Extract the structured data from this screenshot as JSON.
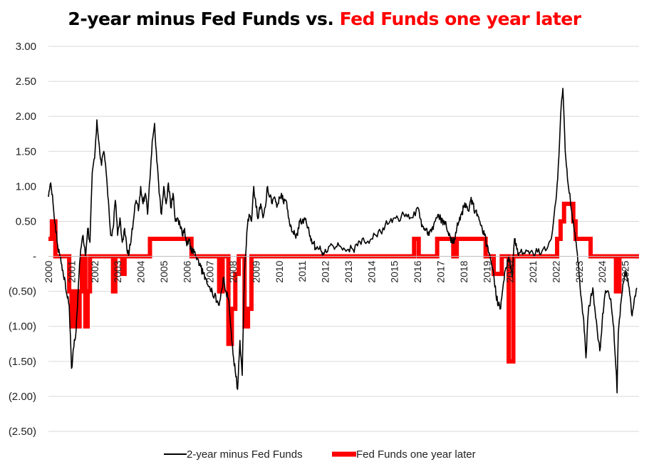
{
  "chart_data": {
    "type": "line",
    "title_part1": "2-year minus Fed Funds vs.",
    "title_part2": "Fed Funds one year later",
    "xlabel": "",
    "ylabel": "",
    "ylim": [
      -2.5,
      3.0
    ],
    "y_ticks": [
      {
        "value": 3.0,
        "label": "3.00"
      },
      {
        "value": 2.5,
        "label": "2.50"
      },
      {
        "value": 2.0,
        "label": "2.00"
      },
      {
        "value": 1.5,
        "label": "1.50"
      },
      {
        "value": 1.0,
        "label": "1.00"
      },
      {
        "value": 0.5,
        "label": "0.50"
      },
      {
        "value": 0.0,
        "label": "-"
      },
      {
        "value": -0.5,
        "label": "(0.50)"
      },
      {
        "value": -1.0,
        "label": "(1.00)"
      },
      {
        "value": -1.5,
        "label": "(1.50)"
      },
      {
        "value": -2.0,
        "label": "(2.00)"
      },
      {
        "value": -2.5,
        "label": "(2.50)"
      }
    ],
    "x_ticks": [
      "2000",
      "2001",
      "2002",
      "2003",
      "2004",
      "2005",
      "2006",
      "2007",
      "2008",
      "2009",
      "2010",
      "2011",
      "2012",
      "2013",
      "2014",
      "2015",
      "2016",
      "2017",
      "2018",
      "2019",
      "2020",
      "2021",
      "2022",
      "2023",
      "2024",
      "2025"
    ],
    "xlim": [
      2000.0,
      2025.6
    ],
    "grid": true,
    "legend_position": "bottom",
    "colors": {
      "spread": "#000000",
      "fedfunds": "#ff0000",
      "grid": "#d9d9d9"
    },
    "series": [
      {
        "name": "2-year minus Fed Funds",
        "points": [
          [
            2000.0,
            0.85
          ],
          [
            2000.1,
            1.05
          ],
          [
            2000.2,
            0.75
          ],
          [
            2000.3,
            0.45
          ],
          [
            2000.4,
            0.15
          ],
          [
            2000.5,
            0.0
          ],
          [
            2000.6,
            -0.2
          ],
          [
            2000.7,
            -0.3
          ],
          [
            2000.8,
            -0.55
          ],
          [
            2000.9,
            -0.7
          ],
          [
            2001.0,
            -1.6
          ],
          [
            2001.1,
            -1.3
          ],
          [
            2001.2,
            -1.05
          ],
          [
            2001.3,
            -0.4
          ],
          [
            2001.4,
            0.1
          ],
          [
            2001.5,
            0.3
          ],
          [
            2001.6,
            0.0
          ],
          [
            2001.7,
            0.4
          ],
          [
            2001.8,
            0.2
          ],
          [
            2001.9,
            1.2
          ],
          [
            2002.0,
            1.4
          ],
          [
            2002.1,
            1.95
          ],
          [
            2002.2,
            1.6
          ],
          [
            2002.3,
            1.3
          ],
          [
            2002.4,
            1.5
          ],
          [
            2002.5,
            1.2
          ],
          [
            2002.6,
            0.8
          ],
          [
            2002.7,
            0.3
          ],
          [
            2002.8,
            0.4
          ],
          [
            2002.9,
            0.8
          ],
          [
            2003.0,
            0.3
          ],
          [
            2003.1,
            0.55
          ],
          [
            2003.2,
            0.2
          ],
          [
            2003.3,
            0.4
          ],
          [
            2003.4,
            0.1
          ],
          [
            2003.5,
            0.05
          ],
          [
            2003.6,
            0.3
          ],
          [
            2003.7,
            0.55
          ],
          [
            2003.8,
            0.8
          ],
          [
            2003.9,
            0.65
          ],
          [
            2004.0,
            1.0
          ],
          [
            2004.1,
            0.75
          ],
          [
            2004.2,
            0.9
          ],
          [
            2004.3,
            0.6
          ],
          [
            2004.4,
            1.1
          ],
          [
            2004.5,
            1.65
          ],
          [
            2004.6,
            1.9
          ],
          [
            2004.7,
            1.35
          ],
          [
            2004.8,
            0.9
          ],
          [
            2004.9,
            0.6
          ],
          [
            2005.0,
            1.0
          ],
          [
            2005.1,
            0.75
          ],
          [
            2005.2,
            1.05
          ],
          [
            2005.3,
            0.7
          ],
          [
            2005.4,
            0.9
          ],
          [
            2005.5,
            0.5
          ],
          [
            2005.6,
            0.55
          ],
          [
            2005.7,
            0.45
          ],
          [
            2005.8,
            0.3
          ],
          [
            2005.9,
            0.4
          ],
          [
            2006.0,
            0.15
          ],
          [
            2006.1,
            0.25
          ],
          [
            2006.2,
            0.05
          ],
          [
            2006.3,
            0.1
          ],
          [
            2006.4,
            0.0
          ],
          [
            2006.5,
            -0.05
          ],
          [
            2006.6,
            -0.15
          ],
          [
            2006.7,
            -0.25
          ],
          [
            2006.8,
            -0.3
          ],
          [
            2006.9,
            -0.4
          ],
          [
            2007.0,
            -0.45
          ],
          [
            2007.1,
            -0.5
          ],
          [
            2007.2,
            -0.55
          ],
          [
            2007.3,
            -0.65
          ],
          [
            2007.4,
            -0.7
          ],
          [
            2007.5,
            -0.5
          ],
          [
            2007.6,
            -0.3
          ],
          [
            2007.7,
            -0.5
          ],
          [
            2007.8,
            -0.6
          ],
          [
            2007.9,
            -1.0
          ],
          [
            2008.0,
            -1.4
          ],
          [
            2008.1,
            -1.65
          ],
          [
            2008.2,
            -1.9
          ],
          [
            2008.3,
            -1.2
          ],
          [
            2008.4,
            -1.7
          ],
          [
            2008.5,
            -0.2
          ],
          [
            2008.6,
            0.35
          ],
          [
            2008.7,
            0.6
          ],
          [
            2008.8,
            0.5
          ],
          [
            2008.9,
            1.0
          ],
          [
            2009.0,
            0.7
          ],
          [
            2009.1,
            0.55
          ],
          [
            2009.2,
            0.75
          ],
          [
            2009.3,
            0.55
          ],
          [
            2009.4,
            0.7
          ],
          [
            2009.5,
            1.0
          ],
          [
            2009.6,
            0.85
          ],
          [
            2009.7,
            0.75
          ],
          [
            2009.8,
            0.85
          ],
          [
            2009.9,
            0.7
          ],
          [
            2010.0,
            0.85
          ],
          [
            2010.1,
            0.9
          ],
          [
            2010.2,
            0.75
          ],
          [
            2010.3,
            0.8
          ],
          [
            2010.4,
            0.55
          ],
          [
            2010.5,
            0.45
          ],
          [
            2010.6,
            0.35
          ],
          [
            2010.7,
            0.3
          ],
          [
            2010.8,
            0.3
          ],
          [
            2010.9,
            0.5
          ],
          [
            2011.0,
            0.5
          ],
          [
            2011.1,
            0.55
          ],
          [
            2011.2,
            0.45
          ],
          [
            2011.3,
            0.35
          ],
          [
            2011.4,
            0.25
          ],
          [
            2011.5,
            0.2
          ],
          [
            2011.6,
            0.1
          ],
          [
            2011.7,
            0.1
          ],
          [
            2011.8,
            0.1
          ],
          [
            2011.9,
            0.05
          ],
          [
            2012.0,
            0.1
          ],
          [
            2012.2,
            0.15
          ],
          [
            2012.4,
            0.1
          ],
          [
            2012.6,
            0.15
          ],
          [
            2012.8,
            0.12
          ],
          [
            2013.0,
            0.1
          ],
          [
            2013.2,
            0.1
          ],
          [
            2013.4,
            0.15
          ],
          [
            2013.6,
            0.25
          ],
          [
            2013.8,
            0.2
          ],
          [
            2014.0,
            0.25
          ],
          [
            2014.2,
            0.3
          ],
          [
            2014.4,
            0.35
          ],
          [
            2014.6,
            0.45
          ],
          [
            2014.8,
            0.5
          ],
          [
            2015.0,
            0.55
          ],
          [
            2015.2,
            0.5
          ],
          [
            2015.4,
            0.6
          ],
          [
            2015.6,
            0.6
          ],
          [
            2015.8,
            0.55
          ],
          [
            2016.0,
            0.7
          ],
          [
            2016.1,
            0.55
          ],
          [
            2016.2,
            0.45
          ],
          [
            2016.3,
            0.4
          ],
          [
            2016.4,
            0.4
          ],
          [
            2016.5,
            0.3
          ],
          [
            2016.6,
            0.35
          ],
          [
            2016.7,
            0.45
          ],
          [
            2016.8,
            0.55
          ],
          [
            2016.9,
            0.6
          ],
          [
            2017.0,
            0.55
          ],
          [
            2017.1,
            0.45
          ],
          [
            2017.2,
            0.5
          ],
          [
            2017.3,
            0.35
          ],
          [
            2017.4,
            0.3
          ],
          [
            2017.5,
            0.2
          ],
          [
            2017.6,
            0.25
          ],
          [
            2017.7,
            0.4
          ],
          [
            2017.8,
            0.5
          ],
          [
            2017.9,
            0.6
          ],
          [
            2018.0,
            0.7
          ],
          [
            2018.1,
            0.75
          ],
          [
            2018.2,
            0.65
          ],
          [
            2018.3,
            0.8
          ],
          [
            2018.4,
            0.75
          ],
          [
            2018.5,
            0.65
          ],
          [
            2018.6,
            0.6
          ],
          [
            2018.7,
            0.5
          ],
          [
            2018.8,
            0.4
          ],
          [
            2018.9,
            0.3
          ],
          [
            2019.0,
            0.15
          ],
          [
            2019.1,
            0.05
          ],
          [
            2019.2,
            -0.1
          ],
          [
            2019.3,
            -0.25
          ],
          [
            2019.4,
            -0.55
          ],
          [
            2019.5,
            -0.7
          ],
          [
            2019.6,
            -0.75
          ],
          [
            2019.7,
            -0.45
          ],
          [
            2019.8,
            -0.2
          ],
          [
            2019.9,
            -0.05
          ],
          [
            2020.0,
            -0.05
          ],
          [
            2020.1,
            -0.3
          ],
          [
            2020.2,
            0.25
          ],
          [
            2020.3,
            0.1
          ],
          [
            2020.4,
            0.05
          ],
          [
            2020.6,
            0.05
          ],
          [
            2020.8,
            0.08
          ],
          [
            2021.0,
            0.05
          ],
          [
            2021.2,
            0.06
          ],
          [
            2021.4,
            0.08
          ],
          [
            2021.6,
            0.1
          ],
          [
            2021.8,
            0.25
          ],
          [
            2022.0,
            0.8
          ],
          [
            2022.1,
            1.3
          ],
          [
            2022.2,
            2.0
          ],
          [
            2022.3,
            2.4
          ],
          [
            2022.4,
            1.5
          ],
          [
            2022.5,
            1.1
          ],
          [
            2022.6,
            0.9
          ],
          [
            2022.7,
            0.6
          ],
          [
            2022.8,
            0.35
          ],
          [
            2022.9,
            0.1
          ],
          [
            2023.0,
            -0.25
          ],
          [
            2023.1,
            -0.6
          ],
          [
            2023.2,
            -0.9
          ],
          [
            2023.3,
            -1.45
          ],
          [
            2023.4,
            -0.8
          ],
          [
            2023.5,
            -0.6
          ],
          [
            2023.6,
            -0.45
          ],
          [
            2023.7,
            -0.8
          ],
          [
            2023.8,
            -1.1
          ],
          [
            2023.9,
            -1.35
          ],
          [
            2024.0,
            -0.95
          ],
          [
            2024.1,
            -0.6
          ],
          [
            2024.2,
            -0.5
          ],
          [
            2024.3,
            -0.55
          ],
          [
            2024.4,
            -0.7
          ],
          [
            2024.5,
            -1.0
          ],
          [
            2024.6,
            -1.6
          ],
          [
            2024.65,
            -1.95
          ],
          [
            2024.7,
            -1.1
          ],
          [
            2024.8,
            -0.7
          ],
          [
            2024.9,
            -0.4
          ],
          [
            2025.0,
            -0.2
          ],
          [
            2025.1,
            -0.35
          ],
          [
            2025.2,
            -0.55
          ],
          [
            2025.3,
            -0.85
          ],
          [
            2025.4,
            -0.6
          ],
          [
            2025.5,
            -0.45
          ]
        ]
      },
      {
        "name": "Fed Funds one year later",
        "points": [
          [
            2000.0,
            0.25
          ],
          [
            2000.15,
            0.5
          ],
          [
            2000.3,
            0.0
          ],
          [
            2000.9,
            -0.5
          ],
          [
            2001.0,
            -1.0
          ],
          [
            2001.1,
            -0.5
          ],
          [
            2001.2,
            -1.0
          ],
          [
            2001.35,
            -0.5
          ],
          [
            2001.45,
            0.0
          ],
          [
            2001.6,
            -1.0
          ],
          [
            2001.7,
            -0.5
          ],
          [
            2001.8,
            0.0
          ],
          [
            2002.0,
            0.0
          ],
          [
            2002.8,
            -0.5
          ],
          [
            2002.9,
            0.0
          ],
          [
            2003.2,
            -0.25
          ],
          [
            2003.3,
            0.0
          ],
          [
            2004.4,
            0.25
          ],
          [
            2006.2,
            0.0
          ],
          [
            2007.4,
            -0.5
          ],
          [
            2007.55,
            0.0
          ],
          [
            2007.8,
            -1.25
          ],
          [
            2007.95,
            -0.75
          ],
          [
            2008.1,
            -0.25
          ],
          [
            2008.25,
            0.0
          ],
          [
            2008.5,
            -1.0
          ],
          [
            2008.65,
            -0.75
          ],
          [
            2008.8,
            0.0
          ],
          [
            2015.85,
            0.25
          ],
          [
            2016.05,
            0.0
          ],
          [
            2016.85,
            0.25
          ],
          [
            2017.55,
            0.0
          ],
          [
            2017.7,
            0.25
          ],
          [
            2018.95,
            0.0
          ],
          [
            2019.3,
            -0.25
          ],
          [
            2019.65,
            0.0
          ],
          [
            2019.95,
            -1.5
          ],
          [
            2020.15,
            0.0
          ],
          [
            2022.05,
            0.25
          ],
          [
            2022.2,
            0.5
          ],
          [
            2022.35,
            0.75
          ],
          [
            2022.75,
            0.5
          ],
          [
            2022.85,
            0.25
          ],
          [
            2023.5,
            0.0
          ],
          [
            2024.6,
            -0.5
          ],
          [
            2024.75,
            0.0
          ],
          [
            2025.6,
            0.0
          ]
        ]
      }
    ]
  }
}
